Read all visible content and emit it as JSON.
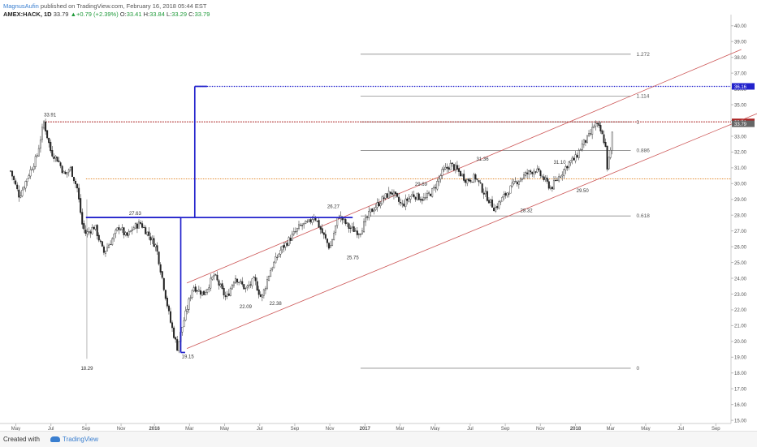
{
  "header": {
    "author": "MagnusAufin",
    "published": "published on TradingView.com, February 16, 2018 05:44 EST",
    "symbol": "AMEX:HACK, 1D",
    "last": "33.79",
    "change": "+0.79 (+2.39%)",
    "o_label": "O:",
    "o": "33.41",
    "h_label": "H:",
    "h": "33.84",
    "l_label": "L:",
    "l": "33.29",
    "c_label": "C:",
    "c": "33.79"
  },
  "footer": {
    "created": "Created with",
    "brand": "TradingView",
    "brand_icon": "tradingview-cloud-icon"
  },
  "colors": {
    "blue": "#2222cc",
    "red_channel": "#cc5555",
    "resistance": "#aa2222",
    "orange": "#e07a10",
    "fib": "#8a8a8a",
    "candle": "#222222",
    "axis_text": "#555555"
  },
  "chart_data": {
    "type": "candlestick",
    "ylim": [
      14.8,
      40.4
    ],
    "yticks": [
      "15.00",
      "16.00",
      "17.00",
      "18.00",
      "19.00",
      "20.00",
      "21.00",
      "22.00",
      "23.00",
      "24.00",
      "25.00",
      "26.00",
      "27.00",
      "28.00",
      "29.00",
      "30.00",
      "31.00",
      "32.00",
      "33.00",
      "34.00",
      "35.00",
      "36.00",
      "37.00",
      "38.00",
      "39.00",
      "40.00"
    ],
    "x_axis": [
      {
        "label": "May",
        "t": 0.3
      },
      {
        "label": "Jul",
        "t": 2.3
      },
      {
        "label": "Sep",
        "t": 4.3
      },
      {
        "label": "Nov",
        "t": 6.3
      },
      {
        "label": "2016",
        "t": 8.2,
        "bold": true
      },
      {
        "label": "Mar",
        "t": 10.2
      },
      {
        "label": "May",
        "t": 12.2
      },
      {
        "label": "Jul",
        "t": 14.2
      },
      {
        "label": "Sep",
        "t": 16.2
      },
      {
        "label": "Nov",
        "t": 18.2
      },
      {
        "label": "2017",
        "t": 20.2,
        "bold": true
      },
      {
        "label": "Mar",
        "t": 22.2
      },
      {
        "label": "May",
        "t": 24.2
      },
      {
        "label": "Jul",
        "t": 26.2
      },
      {
        "label": "Sep",
        "t": 28.2
      },
      {
        "label": "Nov",
        "t": 30.2
      },
      {
        "label": "2018",
        "t": 32.2,
        "bold": true
      },
      {
        "label": "Mar",
        "t": 34.2
      },
      {
        "label": "May",
        "t": 36.2
      },
      {
        "label": "Jul",
        "t": 38.2
      },
      {
        "label": "Sep",
        "t": 40.2
      }
    ],
    "price_path": [
      [
        0,
        30.8
      ],
      [
        0.5,
        29.2
      ],
      [
        1,
        30.5
      ],
      [
        1.5,
        31.7
      ],
      [
        1.9,
        33.9
      ],
      [
        2.3,
        32.0
      ],
      [
        2.7,
        31.5
      ],
      [
        3.1,
        30.5
      ],
      [
        3.4,
        31.0
      ],
      [
        3.8,
        29.7
      ],
      [
        4.1,
        27.3
      ],
      [
        4.3,
        26.8
      ],
      [
        4.8,
        27.3
      ],
      [
        5.3,
        25.6
      ],
      [
        5.8,
        26.5
      ],
      [
        6.2,
        27.3
      ],
      [
        6.6,
        26.6
      ],
      [
        7.0,
        27.2
      ],
      [
        7.4,
        27.5
      ],
      [
        7.9,
        26.7
      ],
      [
        8.3,
        26.0
      ],
      [
        8.6,
        24.3
      ],
      [
        9.1,
        21.3
      ],
      [
        9.5,
        19.6
      ],
      [
        9.8,
        21.0
      ],
      [
        10.4,
        23.5
      ],
      [
        11.0,
        23.0
      ],
      [
        11.6,
        24.2
      ],
      [
        12.3,
        22.7
      ],
      [
        12.8,
        24.1
      ],
      [
        13.4,
        23.3
      ],
      [
        13.9,
        23.9
      ],
      [
        14.3,
        22.7
      ],
      [
        14.8,
        24.5
      ],
      [
        15.4,
        25.8
      ],
      [
        16.0,
        26.6
      ],
      [
        16.5,
        27.3
      ],
      [
        17.0,
        27.5
      ],
      [
        17.3,
        28.0
      ],
      [
        17.8,
        26.8
      ],
      [
        18.2,
        25.9
      ],
      [
        18.7,
        28.0
      ],
      [
        19.3,
        27.2
      ],
      [
        19.9,
        26.9
      ],
      [
        20.5,
        28.2
      ],
      [
        21.2,
        29.0
      ],
      [
        21.7,
        29.5
      ],
      [
        22.3,
        28.6
      ],
      [
        22.9,
        29.3
      ],
      [
        23.6,
        29.0
      ],
      [
        24.1,
        29.6
      ],
      [
        24.6,
        30.7
      ],
      [
        25.1,
        31.2
      ],
      [
        25.5,
        30.8
      ],
      [
        26.0,
        30.2
      ],
      [
        26.5,
        30.4
      ],
      [
        26.9,
        29.6
      ],
      [
        27.3,
        28.9
      ],
      [
        27.6,
        28.4
      ],
      [
        28.2,
        29.3
      ],
      [
        28.8,
        30.1
      ],
      [
        29.4,
        30.6
      ],
      [
        29.9,
        30.9
      ],
      [
        30.4,
        30.3
      ],
      [
        30.8,
        29.7
      ],
      [
        31.3,
        30.5
      ],
      [
        31.8,
        31.3
      ],
      [
        32.2,
        31.6
      ],
      [
        32.6,
        32.5
      ],
      [
        33.0,
        33.0
      ],
      [
        33.3,
        33.8
      ],
      [
        33.6,
        33.4
      ],
      [
        33.9,
        32.5
      ],
      [
        34.0,
        31.0
      ],
      [
        34.2,
        32.0
      ],
      [
        34.35,
        33.79
      ]
    ],
    "lines": [
      {
        "kind": "fib",
        "y": 38.2,
        "x0": 19.95,
        "x1": 35.35,
        "label": "1.272"
      },
      {
        "kind": "fib",
        "y": 35.55,
        "x0": 19.95,
        "x1": 35.35,
        "label": "1.114"
      },
      {
        "kind": "fib",
        "y": 33.91,
        "x0": 19.95,
        "x1": 35.35,
        "label": "1"
      },
      {
        "kind": "fib",
        "y": 32.1,
        "x0": 19.95,
        "x1": 35.35,
        "label": "0.886"
      },
      {
        "kind": "fib",
        "y": 27.95,
        "x0": 19.95,
        "x1": 35.35,
        "label": "0.618"
      },
      {
        "kind": "fib",
        "y": 18.3,
        "x0": 19.95,
        "x1": 35.35,
        "label": "0"
      }
    ],
    "horizontals": [
      {
        "kind": "resistance",
        "y": 33.91,
        "x0": 2.0,
        "x1": 44.0,
        "style": "dotted",
        "tag": "33.91"
      },
      {
        "kind": "target",
        "y": 36.16,
        "x0": 10.5,
        "x1": 44.0,
        "style": "dotted",
        "tag": "36.16"
      },
      {
        "kind": "orange",
        "y": 30.3,
        "x0": 4.3,
        "x1": 44.0,
        "style": "dotted"
      }
    ],
    "last_tag": "33.79",
    "channel": [
      {
        "from": [
          10.05,
          23.7
        ],
        "to": [
          41.65,
          38.5
        ]
      },
      {
        "from": [
          10.05,
          19.55
        ],
        "to": [
          44.0,
          35.1
        ]
      }
    ],
    "measured_move": [
      {
        "from": [
          4.3,
          27.85
        ],
        "to": [
          9.7,
          27.85
        ]
      },
      {
        "from": [
          9.7,
          27.85
        ],
        "to": [
          9.7,
          19.3
        ]
      },
      {
        "from": [
          9.7,
          19.3
        ],
        "to": [
          9.95,
          19.3
        ]
      },
      {
        "from": [
          4.3,
          27.85
        ],
        "to": [
          19.5,
          27.85
        ]
      },
      {
        "from": [
          10.5,
          27.85
        ],
        "to": [
          10.5,
          36.16
        ]
      },
      {
        "from": [
          10.5,
          36.16
        ],
        "to": [
          11.2,
          36.16
        ]
      }
    ],
    "vline": {
      "t": 4.35,
      "from": 29.0,
      "to": 18.9
    },
    "annotations": [
      {
        "text": "33.91",
        "t": 2.25,
        "y": 34.25
      },
      {
        "text": "27.63",
        "t": 7.1,
        "y": 28.0
      },
      {
        "text": "18.29",
        "t": 4.35,
        "y": 18.2
      },
      {
        "text": "19.15",
        "t": 10.1,
        "y": 18.95
      },
      {
        "text": "22.09",
        "t": 13.4,
        "y": 22.1
      },
      {
        "text": "22.38",
        "t": 15.1,
        "y": 22.3
      },
      {
        "text": "26.27",
        "t": 18.4,
        "y": 28.45
      },
      {
        "text": "25.75",
        "t": 19.5,
        "y": 25.2
      },
      {
        "text": "29.69",
        "t": 23.4,
        "y": 29.85
      },
      {
        "text": "31.36",
        "t": 26.9,
        "y": 31.45
      },
      {
        "text": "31.10",
        "t": 31.3,
        "y": 31.25
      },
      {
        "text": "29.50",
        "t": 32.6,
        "y": 29.45
      },
      {
        "text": "28.32",
        "t": 29.4,
        "y": 28.2
      }
    ]
  }
}
